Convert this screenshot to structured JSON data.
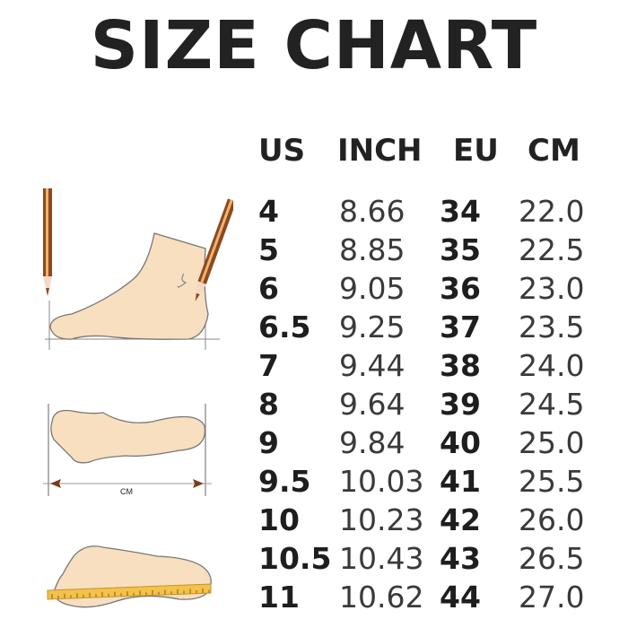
{
  "title": "SIZE CHART",
  "headers": [
    "US",
    "INCH",
    "EU",
    "CM"
  ],
  "rows": [
    {
      "us": "4",
      "inch": "8.66",
      "eu": "34",
      "cm": "22.0"
    },
    {
      "us": "5",
      "inch": "8.85",
      "eu": "35",
      "cm": "22.5"
    },
    {
      "us": "6",
      "inch": "9.05",
      "eu": "36",
      "cm": "23.0"
    },
    {
      "us": "6.5",
      "inch": "9.25",
      "eu": "37",
      "cm": "23.5"
    },
    {
      "us": "7",
      "inch": "9.44",
      "eu": "38",
      "cm": "24.0"
    },
    {
      "us": "8",
      "inch": "9.64",
      "eu": "39",
      "cm": "24.5"
    },
    {
      "us": "9",
      "inch": "9.84",
      "eu": "40",
      "cm": "25.0"
    },
    {
      "us": "9.5",
      "inch": "10.03",
      "eu": "41",
      "cm": "25.5"
    },
    {
      "us": "10",
      "inch": "10.23",
      "eu": "42",
      "cm": "26.0"
    },
    {
      "us": "10.5",
      "inch": "10.43",
      "eu": "43",
      "cm": "26.5"
    },
    {
      "us": "11",
      "inch": "10.62",
      "eu": "44",
      "cm": "27.0"
    }
  ],
  "illustration": {
    "measure_label": "CM"
  },
  "colors": {
    "skin": "#f8dfc0",
    "outline": "#7a7a7a",
    "pencil": "#8b4a22",
    "ruler": "#f2c24a"
  }
}
